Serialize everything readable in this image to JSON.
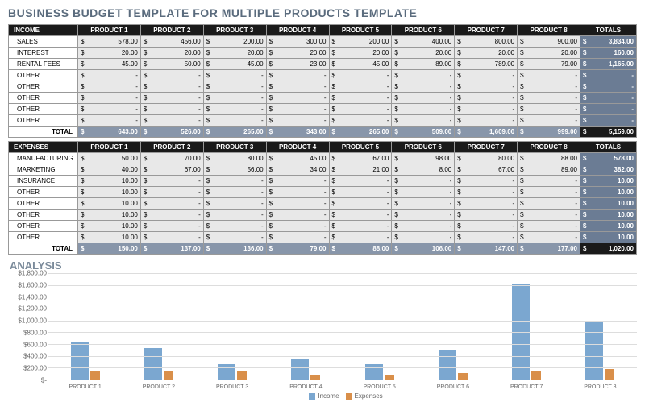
{
  "title": "BUSINESS BUDGET TEMPLATE FOR MULTIPLE PRODUCTS TEMPLATE",
  "currency": "$",
  "colors": {
    "header_dark": "#1a1a1a",
    "cell_bg": "#e8e8e8",
    "totals_col": "#6b7c94",
    "totals_row": "#8896aa",
    "grand_total": "#1a1a1a",
    "income_bar": "#7ba7d0",
    "expense_bar": "#d98f4a",
    "grid": "#dddddd"
  },
  "products": [
    "PRODUCT 1",
    "PRODUCT 2",
    "PRODUCT 3",
    "PRODUCT 4",
    "PRODUCT 5",
    "PRODUCT 6",
    "PRODUCT 7",
    "PRODUCT 8"
  ],
  "totals_label": "TOTALS",
  "total_row_label": "TOTAL",
  "income": {
    "header": "INCOME",
    "rows": [
      {
        "label": "SALES",
        "vals": [
          "578.00",
          "456.00",
          "200.00",
          "300.00",
          "200.00",
          "400.00",
          "800.00",
          "900.00"
        ],
        "total": "3,834.00"
      },
      {
        "label": "INTEREST",
        "vals": [
          "20.00",
          "20.00",
          "20.00",
          "20.00",
          "20.00",
          "20.00",
          "20.00",
          "20.00"
        ],
        "total": "160.00"
      },
      {
        "label": "RENTAL FEES",
        "vals": [
          "45.00",
          "50.00",
          "45.00",
          "23.00",
          "45.00",
          "89.00",
          "789.00",
          "79.00"
        ],
        "total": "1,165.00"
      },
      {
        "label": "OTHER",
        "vals": [
          "-",
          "-",
          "-",
          "-",
          "-",
          "-",
          "-",
          "-"
        ],
        "total": "-"
      },
      {
        "label": "OTHER",
        "vals": [
          "-",
          "-",
          "-",
          "-",
          "-",
          "-",
          "-",
          "-"
        ],
        "total": "-"
      },
      {
        "label": "OTHER",
        "vals": [
          "-",
          "-",
          "-",
          "-",
          "-",
          "-",
          "-",
          "-"
        ],
        "total": "-"
      },
      {
        "label": "OTHER",
        "vals": [
          "-",
          "-",
          "-",
          "-",
          "-",
          "-",
          "-",
          "-"
        ],
        "total": "-"
      },
      {
        "label": "OTHER",
        "vals": [
          "-",
          "-",
          "-",
          "-",
          "-",
          "-",
          "-",
          "-"
        ],
        "total": "-"
      }
    ],
    "col_totals": [
      "643.00",
      "526.00",
      "265.00",
      "343.00",
      "265.00",
      "509.00",
      "1,609.00",
      "999.00"
    ],
    "grand": "5,159.00"
  },
  "expenses": {
    "header": "EXPENSES",
    "rows": [
      {
        "label": "MANUFACTURING",
        "vals": [
          "50.00",
          "70.00",
          "80.00",
          "45.00",
          "67.00",
          "98.00",
          "80.00",
          "88.00"
        ],
        "total": "578.00"
      },
      {
        "label": "MARKETING",
        "vals": [
          "40.00",
          "67.00",
          "56.00",
          "34.00",
          "21.00",
          "8.00",
          "67.00",
          "89.00"
        ],
        "total": "382.00"
      },
      {
        "label": "INSURANCE",
        "vals": [
          "10.00",
          "-",
          "-",
          "-",
          "-",
          "-",
          "-",
          "-"
        ],
        "total": "10.00"
      },
      {
        "label": "OTHER",
        "vals": [
          "10.00",
          "-",
          "-",
          "-",
          "-",
          "-",
          "-",
          "-"
        ],
        "total": "10.00"
      },
      {
        "label": "OTHER",
        "vals": [
          "10.00",
          "-",
          "-",
          "-",
          "-",
          "-",
          "-",
          "-"
        ],
        "total": "10.00"
      },
      {
        "label": "OTHER",
        "vals": [
          "10.00",
          "-",
          "-",
          "-",
          "-",
          "-",
          "-",
          "-"
        ],
        "total": "10.00"
      },
      {
        "label": "OTHER",
        "vals": [
          "10.00",
          "-",
          "-",
          "-",
          "-",
          "-",
          "-",
          "-"
        ],
        "total": "10.00"
      },
      {
        "label": "OTHER",
        "vals": [
          "10.00",
          "-",
          "-",
          "-",
          "-",
          "-",
          "-",
          "-"
        ],
        "total": "10.00"
      }
    ],
    "col_totals": [
      "150.00",
      "137.00",
      "136.00",
      "79.00",
      "88.00",
      "106.00",
      "147.00",
      "177.00"
    ],
    "grand": "1,020.00"
  },
  "analysis": {
    "title": "ANALYSIS",
    "type": "bar",
    "y_ticks": [
      "$1,800.00",
      "$1,600.00",
      "$1,400.00",
      "$1,200.00",
      "$1,000.00",
      "$800.00",
      "$600.00",
      "$400.00",
      "$200.00",
      "$-"
    ],
    "y_max": 1800,
    "series": [
      {
        "name": "Income",
        "color": "#7ba7d0",
        "values": [
          643,
          526,
          265,
          343,
          265,
          509,
          1609,
          999
        ]
      },
      {
        "name": "Expenses",
        "color": "#d98f4a",
        "values": [
          150,
          137,
          136,
          79,
          88,
          106,
          147,
          177
        ]
      }
    ],
    "categories": [
      "PRODUCT 1",
      "PRODUCT 2",
      "PRODUCT 3",
      "PRODUCT 4",
      "PRODUCT 5",
      "PRODUCT 6",
      "PRODUCT 7",
      "PRODUCT 8"
    ]
  }
}
